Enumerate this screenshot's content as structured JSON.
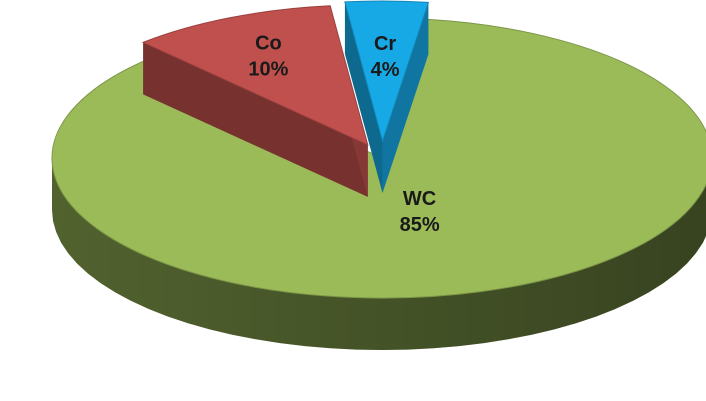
{
  "chart_data": {
    "type": "pie",
    "style": "3d-exploded",
    "title": "",
    "slices": [
      {
        "label": "WC",
        "value": 85,
        "value_label": "85%",
        "color": "#9bbb59"
      },
      {
        "label": "Co",
        "value": 10,
        "value_label": "10%",
        "color": "#c0504d"
      },
      {
        "label": "Cr",
        "value": 4,
        "value_label": "4%",
        "color": "#17a9e6"
      }
    ],
    "legend": "none",
    "data_labels": "on-slice"
  }
}
